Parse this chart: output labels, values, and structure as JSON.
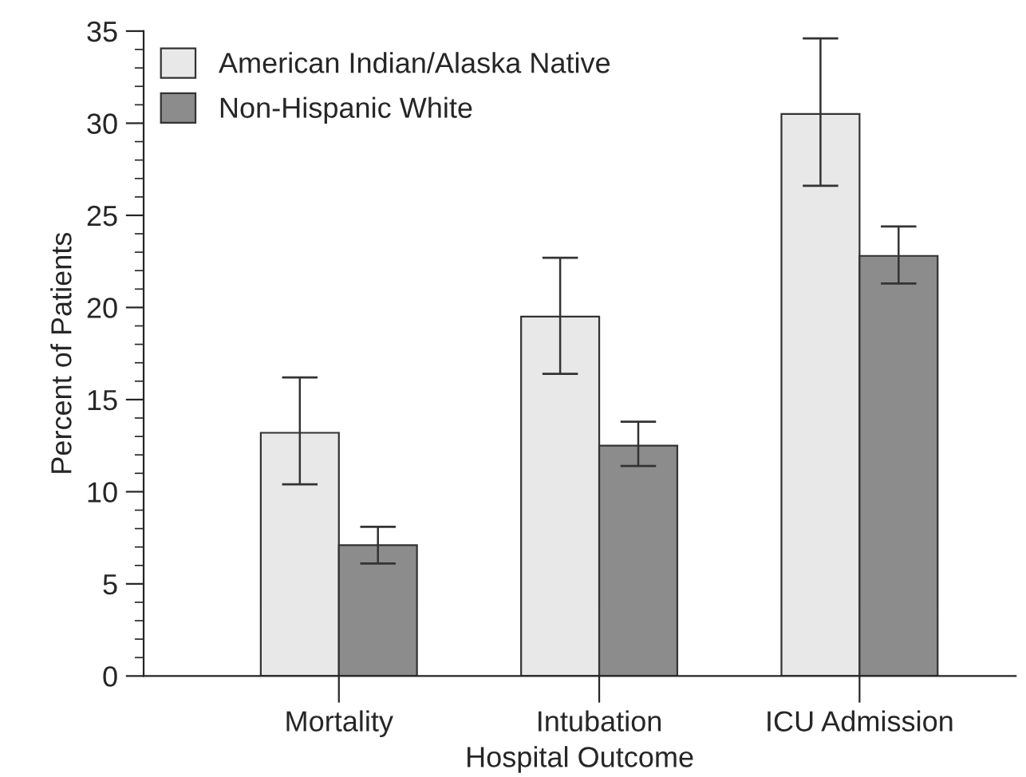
{
  "chart_data": {
    "type": "bar",
    "xlabel": "Hospital Outcome",
    "ylabel": "Percent of Patients",
    "categories": [
      "Mortality",
      "Intubation",
      "ICU Admission"
    ],
    "series": [
      {
        "name": "American Indian/Alaska Native",
        "color": "#e8e8e8",
        "values": [
          13.2,
          19.5,
          30.5
        ],
        "errors": [
          [
            10.4,
            16.2
          ],
          [
            16.4,
            22.7
          ],
          [
            26.6,
            34.6
          ]
        ]
      },
      {
        "name": "Non-Hispanic White",
        "color": "#8c8c8c",
        "values": [
          7.1,
          12.5,
          22.8
        ],
        "errors": [
          [
            6.1,
            8.1
          ],
          [
            11.4,
            13.8
          ],
          [
            21.3,
            24.4
          ]
        ]
      }
    ],
    "ylim": [
      0,
      35
    ],
    "yticks": [
      0,
      5,
      10,
      15,
      20,
      25,
      30,
      35
    ],
    "grid": false,
    "legend": "top left"
  }
}
